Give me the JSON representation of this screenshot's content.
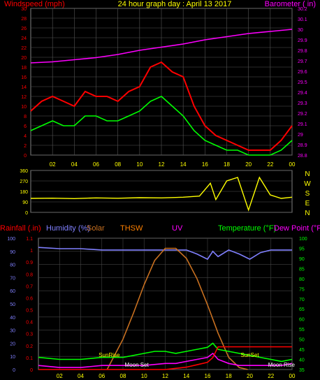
{
  "chart_data": [
    {
      "type": "line",
      "title": "24 hour graph day : April 13 2017",
      "left_label": "Windspeed (mph)",
      "right_label": "Barometer ( in)",
      "x_ticks": [
        "02",
        "04",
        "06",
        "08",
        "10",
        "12",
        "14",
        "16",
        "18",
        "20",
        "22",
        "00"
      ],
      "y_left_ticks": [
        0,
        2,
        4,
        6,
        8,
        10,
        12,
        14,
        16,
        18,
        20,
        22,
        24,
        26,
        28,
        30
      ],
      "y_right_ticks": [
        "28.8",
        "28.9",
        "29",
        "29.1",
        "29.2",
        "29.3",
        "29.4",
        "29.5",
        "29.6",
        "29.7",
        "29.8",
        "29.9",
        "30",
        "30.1",
        "30.2"
      ],
      "grid": true,
      "colors": {
        "gust": "#ff0000",
        "wind": "#00ff00",
        "barometer": "#ff00ff",
        "left_axis": "#ff0000",
        "right_axis": "#ff00ff"
      },
      "series": [
        {
          "key": "gust",
          "x": [
            0,
            1,
            2,
            3,
            4,
            5,
            6,
            7,
            8,
            9,
            10,
            11,
            12,
            13,
            14,
            15,
            16,
            17,
            18,
            19,
            20,
            21,
            22,
            23,
            24
          ],
          "values": [
            9,
            11,
            12,
            11,
            10,
            13,
            12,
            12,
            11,
            13,
            14,
            18,
            19,
            17,
            16,
            10,
            6,
            4,
            3,
            2,
            1,
            1,
            1,
            3,
            6
          ]
        },
        {
          "key": "wind",
          "x": [
            0,
            1,
            2,
            3,
            4,
            5,
            6,
            7,
            8,
            9,
            10,
            11,
            12,
            13,
            14,
            15,
            16,
            17,
            18,
            19,
            20,
            21,
            22,
            23,
            24
          ],
          "values": [
            5,
            6,
            7,
            6,
            6,
            8,
            8,
            7,
            7,
            8,
            9,
            11,
            12,
            10,
            8,
            5,
            3,
            2,
            1,
            1,
            0,
            0,
            0,
            1,
            3
          ]
        },
        {
          "key": "barometer",
          "x": [
            0,
            2,
            4,
            6,
            8,
            10,
            12,
            14,
            16,
            18,
            20,
            22,
            24
          ],
          "values": [
            29.68,
            29.69,
            29.71,
            29.73,
            29.76,
            29.8,
            29.83,
            29.86,
            29.9,
            29.93,
            29.96,
            29.98,
            30.0
          ]
        }
      ]
    },
    {
      "type": "line",
      "left_ticks": [
        0,
        90,
        180,
        270,
        360
      ],
      "right_labels": [
        "N",
        "W",
        "S",
        "E",
        "N"
      ],
      "x_ticks": [
        "02",
        "04",
        "06",
        "08",
        "10",
        "12",
        "14",
        "16",
        "18",
        "20",
        "22",
        "00"
      ],
      "colors": {
        "direction": "#ffff00"
      },
      "series": [
        {
          "key": "direction",
          "x": [
            0,
            2,
            4,
            6,
            8,
            10,
            12,
            14,
            15.5,
            16.5,
            17,
            18,
            19,
            20,
            21,
            22,
            23,
            24
          ],
          "values": [
            120,
            122,
            118,
            124,
            121,
            126,
            124,
            130,
            140,
            250,
            110,
            270,
            300,
            20,
            300,
            150,
            120,
            130
          ]
        }
      ]
    },
    {
      "type": "line",
      "labels": {
        "rainfall": "Rainfall (.in)",
        "humidity": "Humidity (%)",
        "solar": "Solar",
        "thsw": "THSW",
        "uv": "UV",
        "temperature": "Temperature (°F)",
        "dewpoint": "Dew Point (°F)"
      },
      "y_left_ticks": [
        0,
        10,
        20,
        30,
        40,
        50,
        60,
        70,
        80,
        90,
        100
      ],
      "y_mid_ticks": [
        "0",
        "0.1",
        "0.2",
        "0.3",
        "0.4",
        "0.5",
        "0.6",
        "0.7",
        "0.8",
        "0.9",
        "1",
        "1.1"
      ],
      "y_right_ticks": [
        35,
        40,
        45,
        50,
        55,
        60,
        65,
        70,
        75,
        80,
        85,
        90,
        95,
        100
      ],
      "x_ticks": [
        "02",
        "04",
        "06",
        "08",
        "10",
        "12",
        "14",
        "16",
        "18",
        "20",
        "22",
        "00"
      ],
      "annotations": [
        {
          "text": "SunRise",
          "x": 6.7
        },
        {
          "text": "SunSet",
          "x": 20.0
        },
        {
          "text": "Moon Set",
          "x": 9.3
        },
        {
          "text": "Moon Rise",
          "x": 23.0
        }
      ],
      "colors": {
        "humidity": "#8080ff",
        "solar": "#c87020",
        "temperature": "#00ff00",
        "dewpoint": "#ff00ff",
        "rainfall": "#ff0000",
        "uv": "#ff00ff"
      },
      "series": [
        {
          "key": "humidity",
          "x": [
            0,
            2,
            4,
            6,
            8,
            10,
            12,
            14,
            15,
            16,
            16.5,
            17,
            18,
            19,
            20,
            21,
            22,
            23,
            24
          ],
          "values": [
            93,
            92,
            92,
            91,
            91,
            91,
            91,
            91,
            88,
            84,
            90,
            86,
            91,
            88,
            84,
            89,
            91,
            91,
            91
          ]
        },
        {
          "key": "solar",
          "x": [
            6.5,
            8,
            9,
            10,
            11,
            12,
            13,
            14,
            15,
            16,
            17,
            18,
            19,
            19.8
          ],
          "values": [
            0,
            150,
            280,
            420,
            540,
            600,
            600,
            550,
            450,
            320,
            180,
            60,
            10,
            0
          ]
        },
        {
          "key": "temperature",
          "x": [
            0,
            2,
            4,
            6,
            8,
            9,
            10,
            11,
            12,
            13,
            14,
            15,
            16,
            16.5,
            17,
            18,
            19,
            20,
            21,
            22,
            23,
            24
          ],
          "values": [
            41,
            40,
            40,
            41,
            41,
            42,
            43,
            44,
            44,
            43,
            44,
            45,
            46,
            48,
            45,
            44,
            43,
            42,
            41,
            40,
            39,
            40
          ]
        },
        {
          "key": "dewpoint",
          "x": [
            0,
            2,
            4,
            6,
            8,
            10,
            12,
            13,
            14,
            15,
            16,
            16.5,
            17,
            18,
            19,
            20,
            21,
            22,
            23,
            24
          ],
          "values": [
            37,
            36,
            36,
            37,
            37,
            37,
            38,
            38,
            39,
            40,
            41,
            43,
            40,
            38,
            37,
            37,
            37,
            37,
            37,
            38
          ]
        },
        {
          "key": "rainfall",
          "x": [
            0,
            11,
            12,
            13,
            14,
            15,
            16,
            16.5,
            17,
            18,
            20,
            22,
            24
          ],
          "values": [
            0,
            0,
            0,
            0.01,
            0.02,
            0.04,
            0.06,
            0.1,
            0.19,
            0.19,
            0.19,
            0.19,
            0.19
          ]
        }
      ]
    }
  ]
}
